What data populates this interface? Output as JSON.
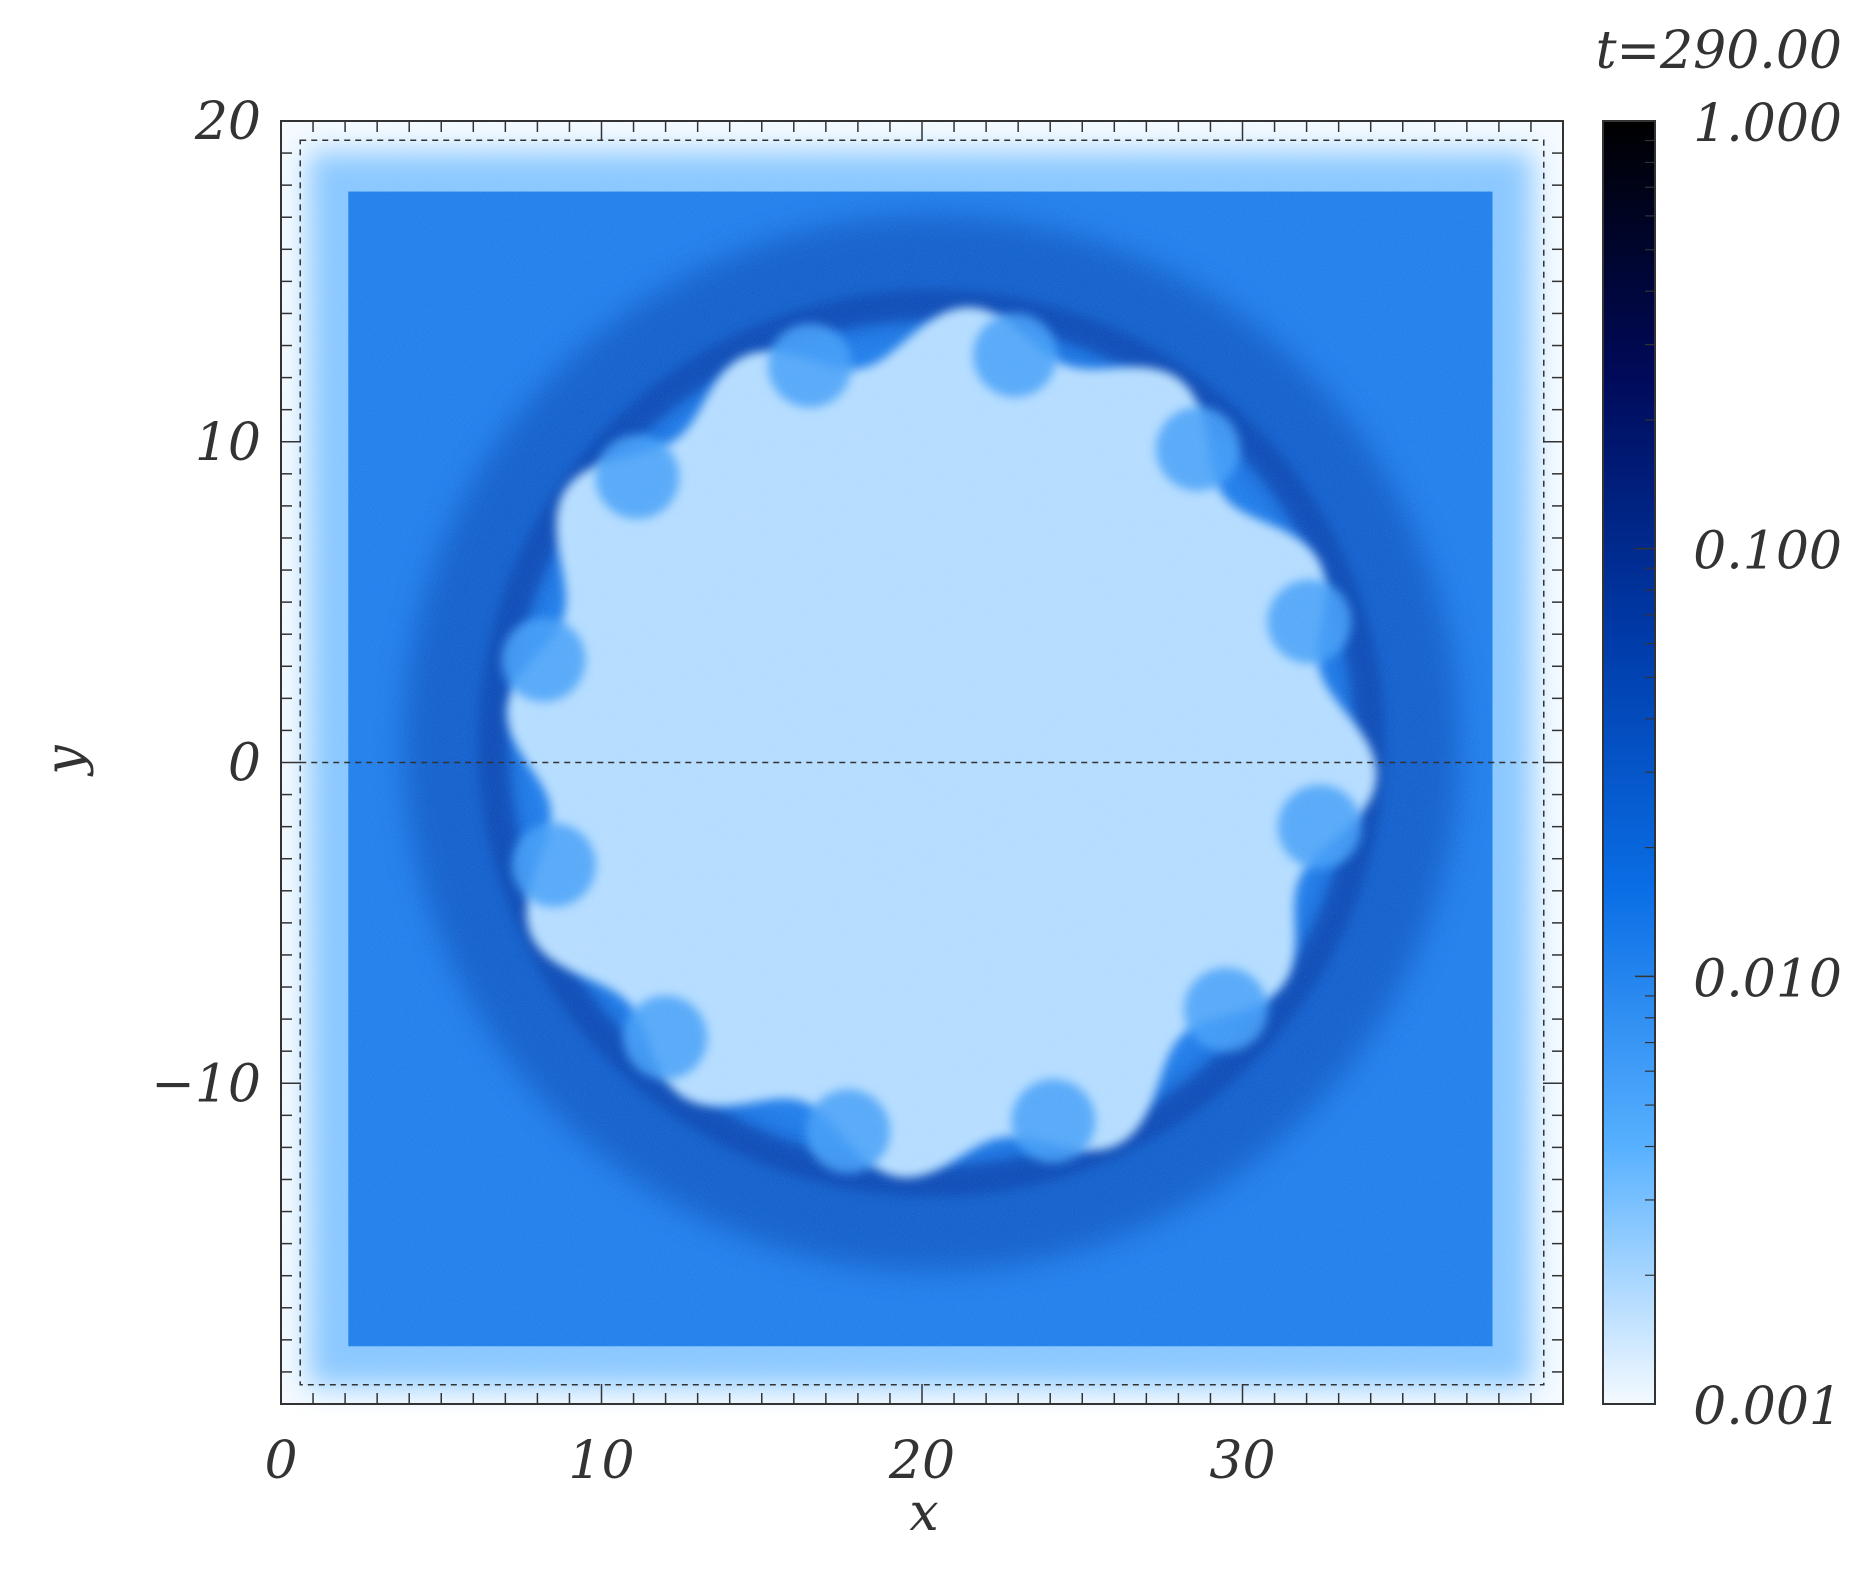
{
  "chart_data": {
    "type": "heatmap",
    "title": "t=290.00",
    "xlabel": "x",
    "ylabel": "y",
    "xlim": [
      0,
      40
    ],
    "ylim": [
      -20,
      20
    ],
    "x_ticks": [
      {
        "value": 0,
        "label": "0"
      },
      {
        "value": 10,
        "label": "10"
      },
      {
        "value": 20,
        "label": "20"
      },
      {
        "value": 30,
        "label": "30"
      }
    ],
    "y_ticks": [
      {
        "value": 20,
        "label": "20"
      },
      {
        "value": 10,
        "label": "10"
      },
      {
        "value": 0,
        "label": "0"
      },
      {
        "value": -10,
        "label": "−10"
      }
    ],
    "colorbar": {
      "scale": "log",
      "range": [
        0.001,
        1.0
      ],
      "ticks": [
        {
          "value": 1.0,
          "label": "1.000"
        },
        {
          "value": 0.1,
          "label": "0.100"
        },
        {
          "value": 0.01,
          "label": "0.010"
        },
        {
          "value": 0.001,
          "label": "0.001"
        }
      ],
      "colors": [
        "#f4faff",
        "#58b1ff",
        "#0a6ee6",
        "#003aa8",
        "#000a5a",
        "#000000"
      ]
    },
    "field": {
      "background_level": 0.012,
      "domain_x": [
        2.1,
        37.8
      ],
      "domain_y": [
        -18.2,
        17.8
      ],
      "void_center": [
        20.3,
        0.6
      ],
      "void_radius": 12.9,
      "shell_peak_level": 0.05
    },
    "guides": {
      "box_x": [
        0.6,
        39.4
      ],
      "box_y": [
        -19.4,
        19.4
      ],
      "horizontal_line_y": 0
    }
  }
}
